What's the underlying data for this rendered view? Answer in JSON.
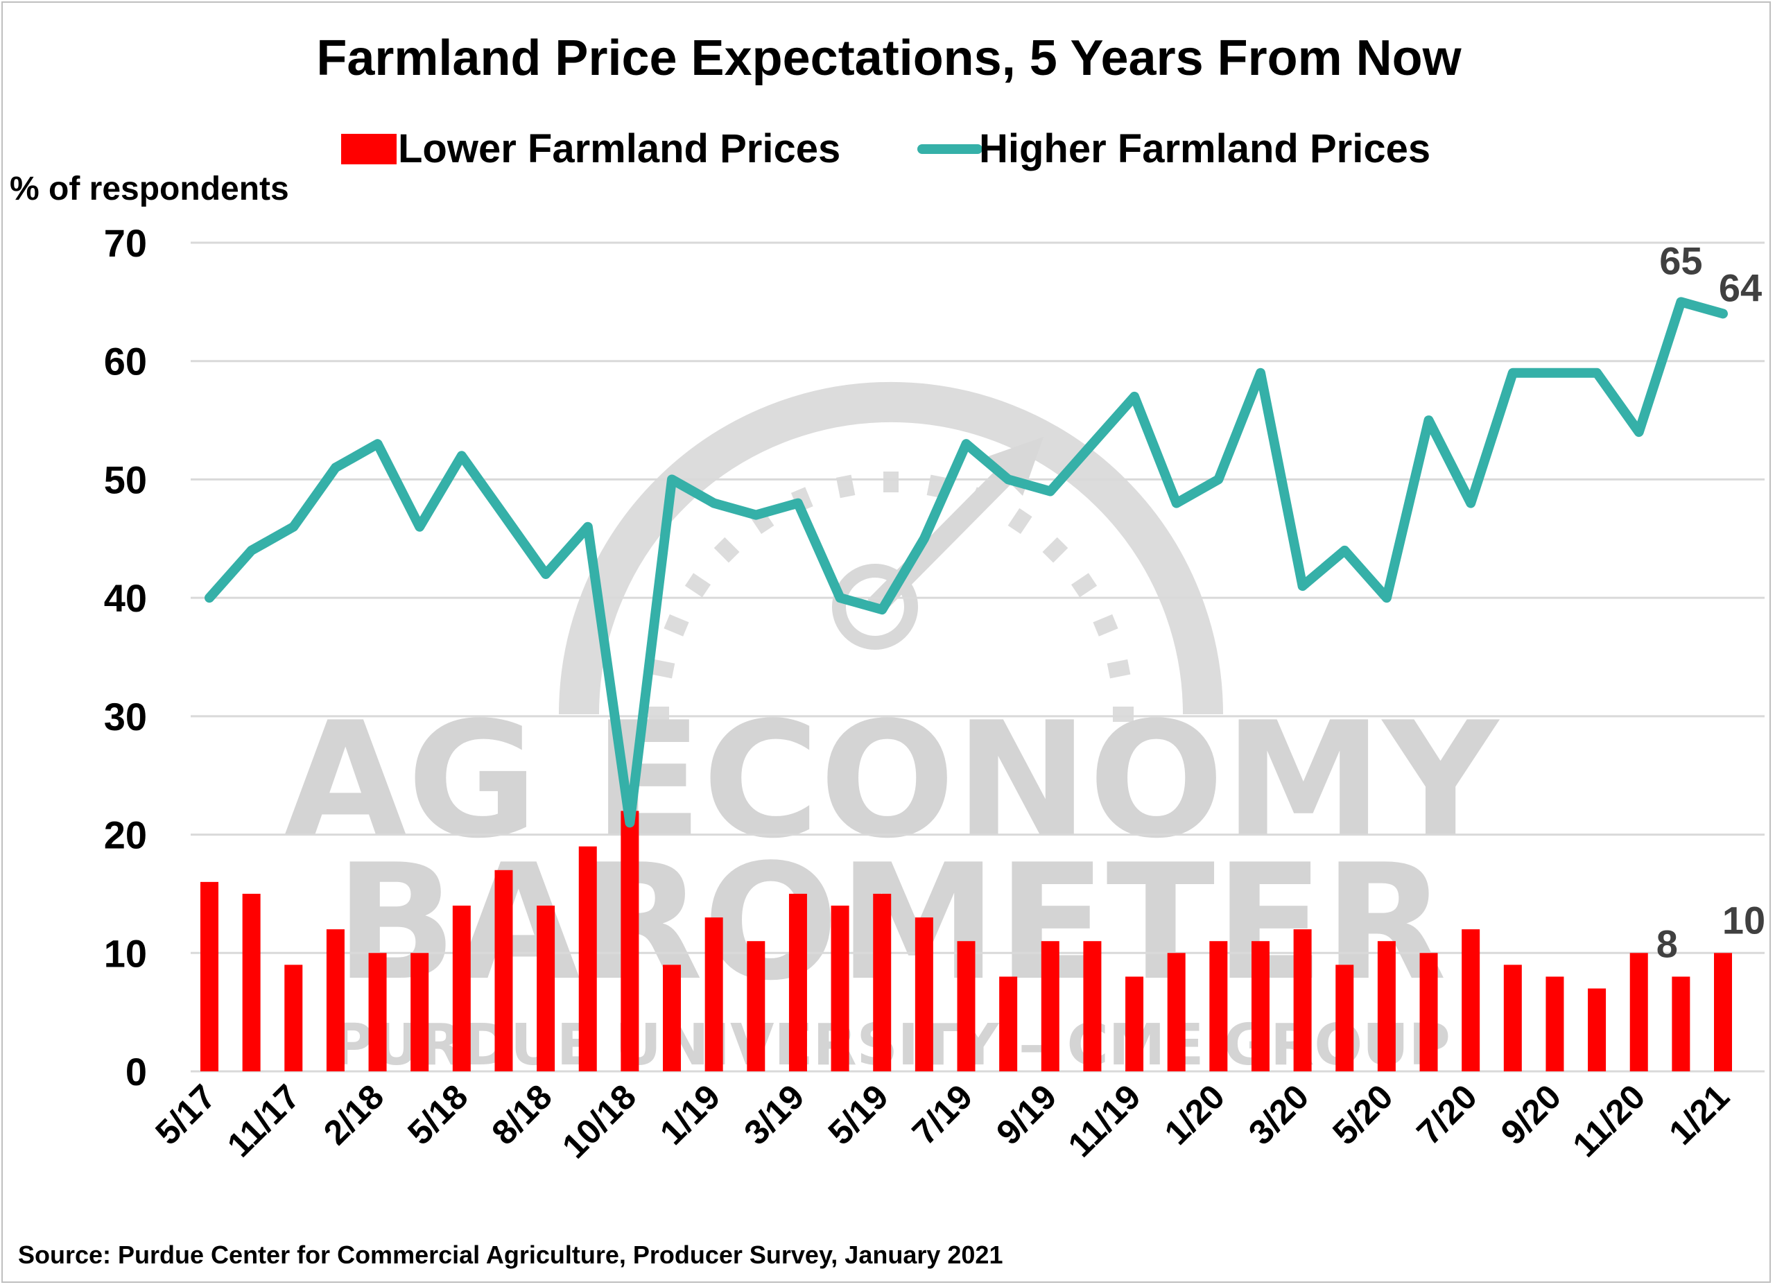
{
  "chart_data": {
    "type": "bar+line",
    "title": "Farmland Price Expectations, 5 Years From Now",
    "ylabel": "% of respondents",
    "ylim": [
      0,
      70
    ],
    "yticks": [
      0,
      10,
      20,
      30,
      40,
      50,
      60,
      70
    ],
    "grid": true,
    "legend_position": "top",
    "x_tick_labels": [
      "5/17",
      "11/17",
      "2/18",
      "5/18",
      "8/18",
      "10/18",
      "1/19",
      "3/19",
      "5/19",
      "7/19",
      "9/19",
      "11/19",
      "1/20",
      "3/20",
      "5/20",
      "7/20",
      "9/20",
      "11/20",
      "1/21"
    ],
    "series": [
      {
        "name": "Lower Farmland Prices",
        "kind": "bar",
        "color": "#ff0000",
        "values": [
          16,
          15,
          9,
          12,
          10,
          10,
          14,
          17,
          14,
          19,
          22,
          9,
          13,
          11,
          15,
          14,
          15,
          13,
          11,
          8,
          11,
          11,
          8,
          10,
          11,
          11,
          12,
          9,
          11,
          10,
          12,
          9,
          8,
          7,
          10,
          8,
          10
        ]
      },
      {
        "name": "Higher Farmland Prices",
        "kind": "line",
        "color": "#35b0a8",
        "values": [
          40,
          44,
          46,
          51,
          53,
          46,
          52,
          47,
          42,
          46,
          21,
          50,
          48,
          47,
          48,
          40,
          39,
          45,
          53,
          50,
          49,
          53,
          57,
          48,
          50,
          59,
          41,
          44,
          40,
          55,
          48,
          59,
          59,
          59,
          54,
          65,
          64
        ]
      }
    ],
    "data_labels": [
      {
        "series": 1,
        "index": 35,
        "text": "65"
      },
      {
        "series": 1,
        "index": 36,
        "text": "64"
      },
      {
        "series": 0,
        "index": 35,
        "text": "8"
      },
      {
        "series": 0,
        "index": 36,
        "text": "10"
      }
    ]
  },
  "watermark": {
    "line1": "AG ECONOMY",
    "line2": "BAROMETER",
    "line3": "PURDUE UNIVERSITY – CME GROUP"
  },
  "source": "Source: Purdue Center for Commercial Agriculture, Producer Survey, January 2021"
}
